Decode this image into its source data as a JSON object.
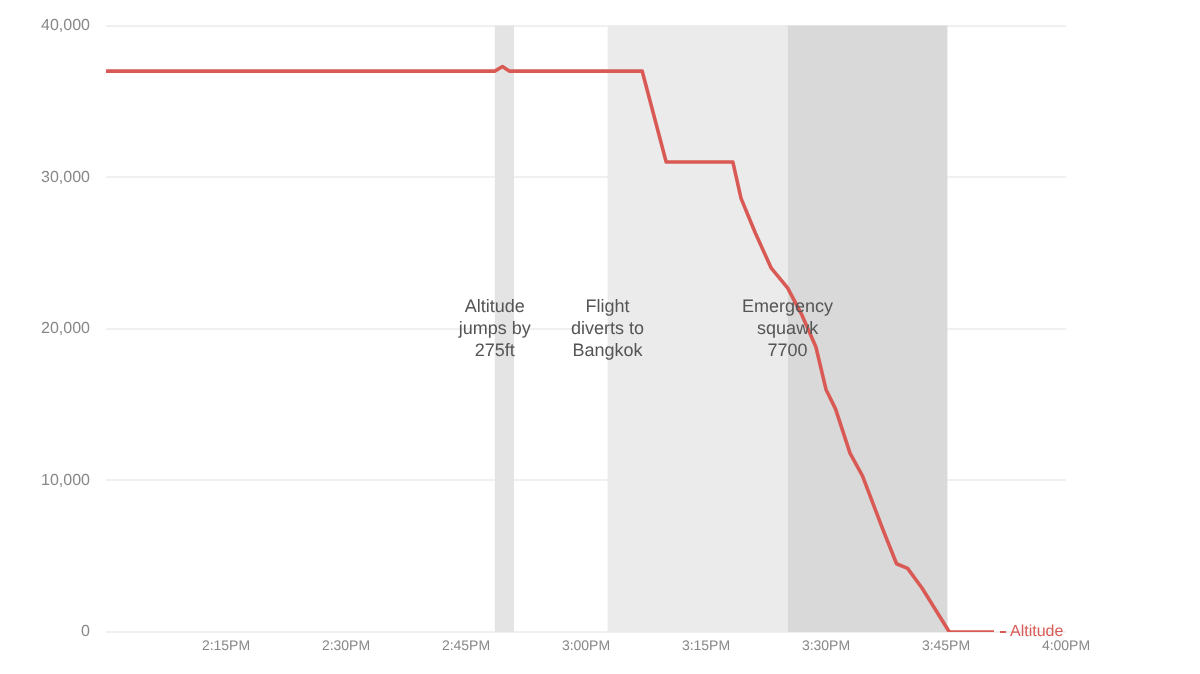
{
  "chart_data": {
    "type": "line",
    "xlim": [
      14,
      16
    ],
    "ylim": [
      0,
      40000
    ],
    "xticks": [
      {
        "value": 14.25,
        "label": "2:15PM"
      },
      {
        "value": 14.5,
        "label": "2:30PM"
      },
      {
        "value": 14.75,
        "label": "2:45PM"
      },
      {
        "value": 15,
        "label": "3:00PM"
      },
      {
        "value": 15.25,
        "label": "3:15PM"
      },
      {
        "value": 15.5,
        "label": "3:30PM"
      },
      {
        "value": 15.75,
        "label": "3:45PM"
      },
      {
        "value": 16,
        "label": "4:00PM"
      }
    ],
    "yticks": [
      {
        "value": 0,
        "label": "0"
      },
      {
        "value": 10000,
        "label": "10,000"
      },
      {
        "value": 20000,
        "label": "20,000"
      },
      {
        "value": 30000,
        "label": "30,000"
      },
      {
        "value": 40000,
        "label": "40,000"
      }
    ],
    "grid": "y",
    "legend": "bottom right",
    "marker": "none",
    "line_style": "solid",
    "bands": [
      {
        "axis": "x",
        "from": 14.81,
        "to": 14.85,
        "label": "Altitude jumps by 275ft",
        "color": "#e4e4e4"
      },
      {
        "axis": "x",
        "from": 15.045,
        "to": 15.42,
        "label": "Flight diverts to Bangkok",
        "color": "#ebebeb"
      },
      {
        "axis": "x",
        "from": 15.42,
        "to": 15.753,
        "label": "Emergency squawk 7700",
        "color": "#d9d9d9"
      }
    ],
    "series": [
      {
        "name": "Altitude",
        "color": "#d95a55",
        "x": [
          14,
          14.81,
          14.826,
          14.84,
          15.117,
          15.167,
          15.306,
          15.323,
          15.353,
          15.386,
          15.42,
          15.45,
          15.479,
          15.5,
          15.52,
          15.55,
          15.576,
          15.618,
          15.647,
          15.67,
          15.7,
          15.757,
          15.85
        ],
        "values": [
          37000,
          37000,
          37300,
          37000,
          37000,
          31000,
          31000,
          28600,
          26300,
          24000,
          22700,
          20900,
          18800,
          16000,
          14700,
          11800,
          10300,
          6800,
          4500,
          4200,
          2900,
          0,
          0
        ]
      }
    ]
  }
}
